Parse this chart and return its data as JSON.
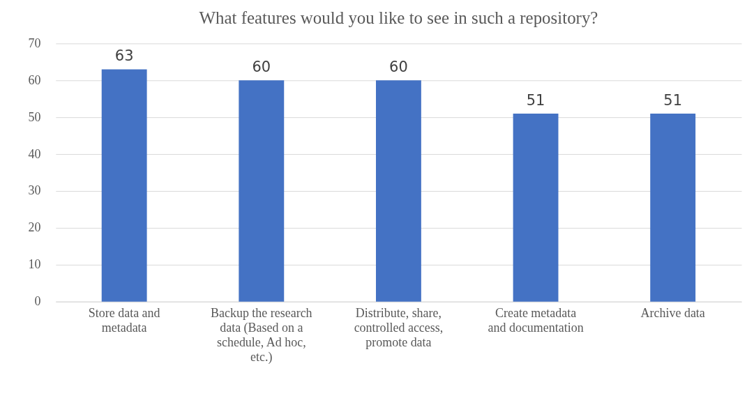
{
  "chart_data": {
    "type": "bar",
    "title": "What features would you like to see in such a repository?",
    "categories": [
      "Store data and\nmetadata",
      "Backup the research\ndata (Based on a\nschedule, Ad hoc,\netc.)",
      "Distribute, share,\ncontrolled access,\npromote data",
      "Create metadata\nand documentation",
      "Archive data"
    ],
    "values": [
      63,
      60,
      60,
      51,
      51
    ],
    "color": "#4472c4",
    "ylim": [
      0,
      70
    ],
    "yticks": [
      0,
      10,
      20,
      30,
      40,
      50,
      60,
      70
    ],
    "grid": "y",
    "data_labels": true
  }
}
